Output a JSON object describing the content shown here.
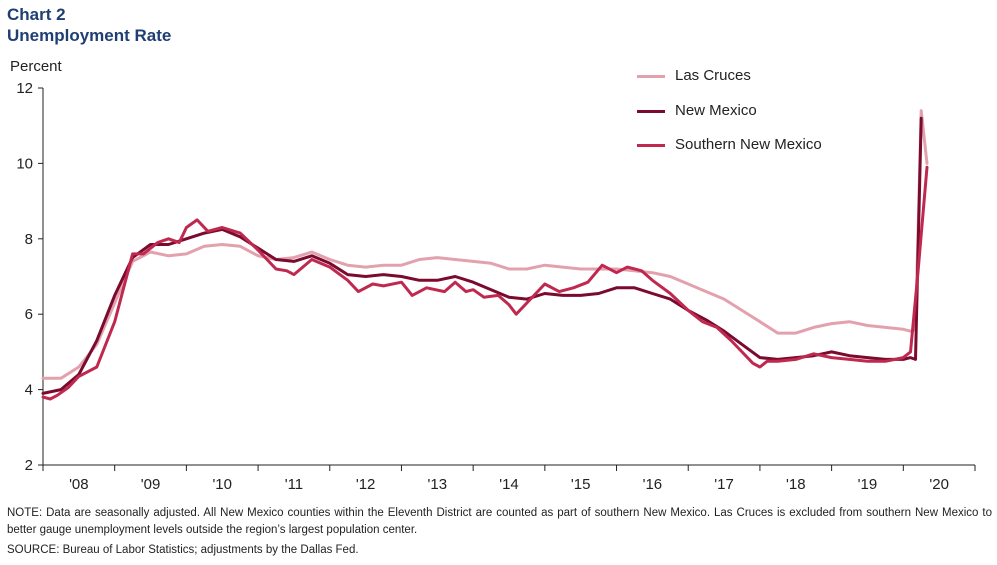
{
  "header": {
    "chart_number": "Chart 2",
    "title": "Unemployment Rate"
  },
  "y_unit_label": "Percent",
  "legend": {
    "items": [
      {
        "label": "Las Cruces",
        "color": "#e3a1ad"
      },
      {
        "label": "New Mexico",
        "color": "#7a0a2e"
      },
      {
        "label": "Southern New Mexico",
        "color": "#c0294f"
      }
    ]
  },
  "footnotes": {
    "note": "NOTE: Data are seasonally adjusted. All New Mexico counties within the Eleventh District are counted as part of southern New Mexico. Las Cruces is excluded from southern New Mexico to better gauge unemployment levels outside the region’s largest population center.",
    "source": "SOURCE: Bureau of Labor Statistics; adjustments by the Dallas Fed."
  },
  "chart_data": {
    "type": "line",
    "title": "Unemployment Rate",
    "ylabel": "Percent",
    "ylim": [
      2,
      12
    ],
    "yticks": [
      2,
      4,
      6,
      8,
      10,
      12
    ],
    "xlim": [
      2008.0,
      2021.0
    ],
    "xticks": [
      {
        "label": "'08",
        "x": 2008.5
      },
      {
        "label": "'09",
        "x": 2009.5
      },
      {
        "label": "'10",
        "x": 2010.5
      },
      {
        "label": "'11",
        "x": 2011.5
      },
      {
        "label": "'12",
        "x": 2012.5
      },
      {
        "label": "'13",
        "x": 2013.5
      },
      {
        "label": "'14",
        "x": 2014.5
      },
      {
        "label": "'15",
        "x": 2015.5
      },
      {
        "label": "'16",
        "x": 2016.5
      },
      {
        "label": "'17",
        "x": 2017.5
      },
      {
        "label": "'18",
        "x": 2018.5
      },
      {
        "label": "'19",
        "x": 2019.5
      },
      {
        "label": "'20",
        "x": 2020.5
      }
    ],
    "grid": false,
    "legend_position": "top-right",
    "series": [
      {
        "name": "Las Cruces",
        "color": "#e3a1ad",
        "points": [
          [
            2008.0,
            4.3
          ],
          [
            2008.25,
            4.3
          ],
          [
            2008.5,
            4.6
          ],
          [
            2008.75,
            5.2
          ],
          [
            2009.0,
            6.3
          ],
          [
            2009.25,
            7.4
          ],
          [
            2009.5,
            7.65
          ],
          [
            2009.75,
            7.55
          ],
          [
            2010.0,
            7.6
          ],
          [
            2010.25,
            7.8
          ],
          [
            2010.5,
            7.85
          ],
          [
            2010.75,
            7.8
          ],
          [
            2011.0,
            7.55
          ],
          [
            2011.25,
            7.45
          ],
          [
            2011.5,
            7.5
          ],
          [
            2011.75,
            7.65
          ],
          [
            2012.0,
            7.45
          ],
          [
            2012.25,
            7.3
          ],
          [
            2012.5,
            7.25
          ],
          [
            2012.75,
            7.3
          ],
          [
            2013.0,
            7.3
          ],
          [
            2013.25,
            7.45
          ],
          [
            2013.5,
            7.5
          ],
          [
            2013.75,
            7.45
          ],
          [
            2014.0,
            7.4
          ],
          [
            2014.25,
            7.35
          ],
          [
            2014.5,
            7.2
          ],
          [
            2014.75,
            7.2
          ],
          [
            2015.0,
            7.3
          ],
          [
            2015.25,
            7.25
          ],
          [
            2015.5,
            7.2
          ],
          [
            2015.75,
            7.2
          ],
          [
            2016.0,
            7.2
          ],
          [
            2016.25,
            7.15
          ],
          [
            2016.5,
            7.1
          ],
          [
            2016.75,
            7.0
          ],
          [
            2017.0,
            6.8
          ],
          [
            2017.25,
            6.6
          ],
          [
            2017.5,
            6.4
          ],
          [
            2017.75,
            6.1
          ],
          [
            2018.0,
            5.8
          ],
          [
            2018.25,
            5.5
          ],
          [
            2018.5,
            5.5
          ],
          [
            2018.75,
            5.65
          ],
          [
            2019.0,
            5.75
          ],
          [
            2019.25,
            5.8
          ],
          [
            2019.5,
            5.7
          ],
          [
            2019.75,
            5.65
          ],
          [
            2020.0,
            5.6
          ],
          [
            2020.1,
            5.55
          ],
          [
            2020.17,
            5.6
          ],
          [
            2020.25,
            11.4
          ],
          [
            2020.33,
            10.0
          ]
        ]
      },
      {
        "name": "New Mexico",
        "color": "#7a0a2e",
        "points": [
          [
            2008.0,
            3.9
          ],
          [
            2008.25,
            4.0
          ],
          [
            2008.5,
            4.4
          ],
          [
            2008.75,
            5.3
          ],
          [
            2009.0,
            6.5
          ],
          [
            2009.25,
            7.5
          ],
          [
            2009.5,
            7.85
          ],
          [
            2009.75,
            7.85
          ],
          [
            2010.0,
            8.0
          ],
          [
            2010.25,
            8.15
          ],
          [
            2010.5,
            8.25
          ],
          [
            2010.75,
            8.05
          ],
          [
            2011.0,
            7.75
          ],
          [
            2011.25,
            7.45
          ],
          [
            2011.5,
            7.4
          ],
          [
            2011.75,
            7.55
          ],
          [
            2012.0,
            7.35
          ],
          [
            2012.25,
            7.05
          ],
          [
            2012.5,
            7.0
          ],
          [
            2012.75,
            7.05
          ],
          [
            2013.0,
            7.0
          ],
          [
            2013.25,
            6.9
          ],
          [
            2013.5,
            6.9
          ],
          [
            2013.75,
            7.0
          ],
          [
            2014.0,
            6.85
          ],
          [
            2014.25,
            6.65
          ],
          [
            2014.5,
            6.45
          ],
          [
            2014.75,
            6.4
          ],
          [
            2015.0,
            6.55
          ],
          [
            2015.25,
            6.5
          ],
          [
            2015.5,
            6.5
          ],
          [
            2015.75,
            6.55
          ],
          [
            2016.0,
            6.7
          ],
          [
            2016.25,
            6.7
          ],
          [
            2016.5,
            6.55
          ],
          [
            2016.75,
            6.4
          ],
          [
            2017.0,
            6.1
          ],
          [
            2017.25,
            5.85
          ],
          [
            2017.5,
            5.55
          ],
          [
            2017.75,
            5.2
          ],
          [
            2018.0,
            4.85
          ],
          [
            2018.25,
            4.8
          ],
          [
            2018.5,
            4.85
          ],
          [
            2018.75,
            4.9
          ],
          [
            2019.0,
            5.0
          ],
          [
            2019.25,
            4.9
          ],
          [
            2019.5,
            4.85
          ],
          [
            2019.75,
            4.8
          ],
          [
            2020.0,
            4.8
          ],
          [
            2020.1,
            4.85
          ],
          [
            2020.17,
            4.8
          ],
          [
            2020.25,
            11.2
          ]
        ]
      },
      {
        "name": "Southern New Mexico",
        "color": "#c0294f",
        "points": [
          [
            2008.0,
            3.8
          ],
          [
            2008.1,
            3.75
          ],
          [
            2008.2,
            3.85
          ],
          [
            2008.35,
            4.05
          ],
          [
            2008.5,
            4.35
          ],
          [
            2008.75,
            4.6
          ],
          [
            2009.0,
            5.8
          ],
          [
            2009.25,
            7.6
          ],
          [
            2009.4,
            7.6
          ],
          [
            2009.6,
            7.9
          ],
          [
            2009.75,
            8.0
          ],
          [
            2009.9,
            7.9
          ],
          [
            2010.0,
            8.3
          ],
          [
            2010.15,
            8.5
          ],
          [
            2010.3,
            8.2
          ],
          [
            2010.5,
            8.3
          ],
          [
            2010.75,
            8.15
          ],
          [
            2011.0,
            7.7
          ],
          [
            2011.25,
            7.2
          ],
          [
            2011.4,
            7.15
          ],
          [
            2011.5,
            7.05
          ],
          [
            2011.75,
            7.45
          ],
          [
            2012.0,
            7.25
          ],
          [
            2012.25,
            6.9
          ],
          [
            2012.4,
            6.6
          ],
          [
            2012.6,
            6.8
          ],
          [
            2012.75,
            6.75
          ],
          [
            2013.0,
            6.85
          ],
          [
            2013.15,
            6.5
          ],
          [
            2013.35,
            6.7
          ],
          [
            2013.6,
            6.6
          ],
          [
            2013.75,
            6.85
          ],
          [
            2013.9,
            6.6
          ],
          [
            2014.0,
            6.65
          ],
          [
            2014.15,
            6.45
          ],
          [
            2014.35,
            6.5
          ],
          [
            2014.5,
            6.25
          ],
          [
            2014.6,
            6.0
          ],
          [
            2014.8,
            6.4
          ],
          [
            2015.0,
            6.8
          ],
          [
            2015.2,
            6.6
          ],
          [
            2015.4,
            6.7
          ],
          [
            2015.6,
            6.85
          ],
          [
            2015.8,
            7.3
          ],
          [
            2016.0,
            7.1
          ],
          [
            2016.15,
            7.25
          ],
          [
            2016.35,
            7.15
          ],
          [
            2016.5,
            6.9
          ],
          [
            2016.75,
            6.55
          ],
          [
            2017.0,
            6.1
          ],
          [
            2017.2,
            5.8
          ],
          [
            2017.4,
            5.65
          ],
          [
            2017.6,
            5.3
          ],
          [
            2017.75,
            5.0
          ],
          [
            2017.9,
            4.7
          ],
          [
            2018.0,
            4.6
          ],
          [
            2018.1,
            4.75
          ],
          [
            2018.25,
            4.75
          ],
          [
            2018.5,
            4.8
          ],
          [
            2018.75,
            4.95
          ],
          [
            2019.0,
            4.85
          ],
          [
            2019.25,
            4.8
          ],
          [
            2019.5,
            4.75
          ],
          [
            2019.75,
            4.75
          ],
          [
            2020.0,
            4.85
          ],
          [
            2020.1,
            5.0
          ],
          [
            2020.2,
            7.0
          ],
          [
            2020.33,
            9.9
          ]
        ]
      }
    ]
  }
}
